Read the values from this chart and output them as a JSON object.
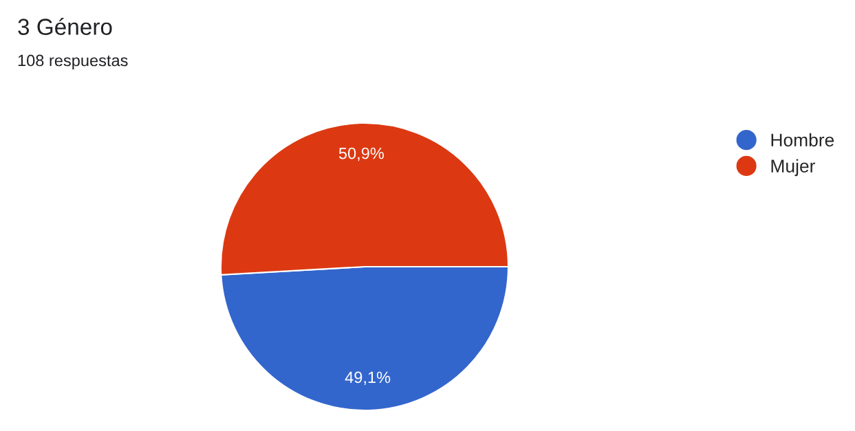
{
  "chart_data": {
    "type": "pie",
    "title": "3 Género",
    "subtitle": "108 respuestas",
    "categories": [
      "Hombre",
      "Mujer"
    ],
    "values": [
      49.1,
      50.9
    ],
    "colors": [
      "#3366cc",
      "#dc3912"
    ],
    "value_labels": [
      "49,1%",
      "50,9%"
    ],
    "legend": "right"
  }
}
